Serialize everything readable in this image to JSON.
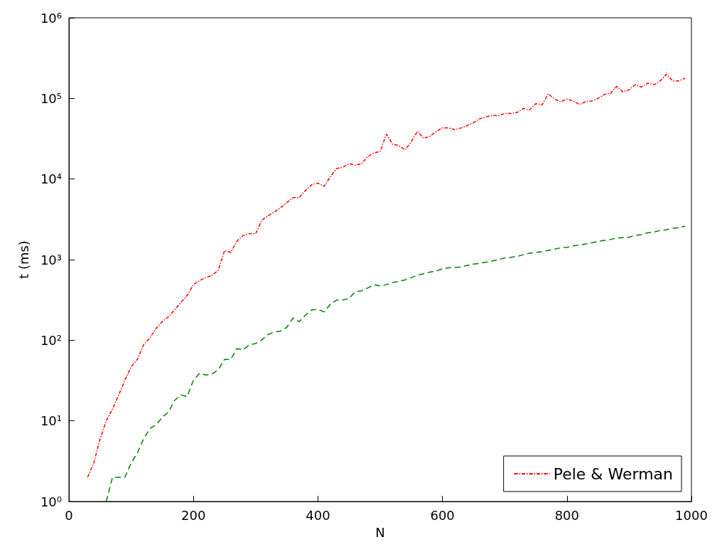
{
  "chart_data": {
    "type": "line",
    "xlabel": "N",
    "ylabel": "t (ms)",
    "log": "y",
    "grid": false,
    "legend": "bottom right",
    "xlim": [
      0,
      1000
    ],
    "xticks": [
      0,
      200,
      400,
      600,
      800,
      1000
    ],
    "ylim": [
      1,
      1000000
    ],
    "yticks": [
      {
        "value": 1,
        "label": "10⁰"
      },
      {
        "value": 10,
        "label": "10¹"
      },
      {
        "value": 100,
        "label": "10²"
      },
      {
        "value": 1000,
        "label": "10³"
      },
      {
        "value": 10000,
        "label": "10⁴"
      },
      {
        "value": 100000,
        "label": "10⁵"
      },
      {
        "value": 1000000,
        "label": "10⁶"
      }
    ],
    "x": [
      30,
      40,
      50,
      60,
      70,
      80,
      90,
      100,
      110,
      120,
      130,
      140,
      150,
      160,
      170,
      180,
      190,
      200,
      210,
      220,
      230,
      240,
      250,
      260,
      270,
      280,
      290,
      300,
      310,
      320,
      330,
      340,
      350,
      360,
      370,
      380,
      390,
      400,
      410,
      420,
      430,
      440,
      450,
      460,
      470,
      480,
      490,
      500,
      510,
      520,
      530,
      540,
      550,
      560,
      570,
      580,
      590,
      600,
      610,
      620,
      630,
      640,
      650,
      660,
      670,
      680,
      690,
      700,
      710,
      720,
      730,
      740,
      750,
      760,
      770,
      780,
      790,
      800,
      810,
      820,
      830,
      840,
      850,
      860,
      870,
      880,
      890,
      900,
      910,
      920,
      930,
      940,
      950,
      960,
      970,
      980,
      990
    ],
    "series": [
      {
        "color": "#008000",
        "line_style": "dashed",
        "values": [
          null,
          null,
          null,
          1,
          2,
          2,
          2,
          3,
          4,
          6,
          8,
          9,
          11,
          13,
          18,
          21,
          20,
          32,
          39,
          37,
          38,
          43,
          58,
          58,
          79,
          76,
          88,
          91,
          101,
          118,
          126,
          130,
          145,
          189,
          170,
          205,
          238,
          240,
          225,
          280,
          315,
          315,
          330,
          400,
          410,
          445,
          490,
          470,
          490,
          520,
          540,
          560,
          600,
          640,
          670,
          700,
          720,
          770,
          790,
          800,
          810,
          850,
          880,
          900,
          930,
          960,
          1000,
          1050,
          1070,
          1100,
          1150,
          1200,
          1230,
          1260,
          1300,
          1350,
          1400,
          1420,
          1480,
          1520,
          1560,
          1620,
          1680,
          1730,
          1780,
          1850,
          1880,
          1900,
          2000,
          2050,
          2150,
          2200,
          2300,
          2350,
          2450,
          2500,
          2600
        ]
      },
      {
        "name": "Pele & Werman",
        "color": "#ff0000",
        "line_style": "dashdot",
        "values": [
          2,
          3,
          6,
          10,
          14,
          21,
          32,
          47,
          58,
          88,
          107,
          140,
          170,
          196,
          240,
          296,
          360,
          490,
          550,
          600,
          640,
          740,
          1300,
          1230,
          1700,
          2000,
          2100,
          2100,
          3100,
          3500,
          3900,
          4400,
          5100,
          5900,
          5900,
          7200,
          8500,
          8900,
          8100,
          10700,
          13500,
          14000,
          15500,
          14800,
          15500,
          19000,
          21000,
          22000,
          36000,
          27000,
          26000,
          23000,
          29000,
          39000,
          32000,
          34000,
          39000,
          43000,
          43000,
          41000,
          43000,
          46000,
          50000,
          56000,
          59000,
          62000,
          61000,
          65000,
          65000,
          67000,
          75000,
          72000,
          86000,
          83000,
          114000,
          98000,
          91000,
          98000,
          93000,
          84000,
          91000,
          93000,
          100000,
          112000,
          115000,
          141000,
          120000,
          128000,
          148000,
          138000,
          155000,
          148000,
          165000,
          200000,
          165000,
          165000,
          178000
        ]
      }
    ]
  }
}
